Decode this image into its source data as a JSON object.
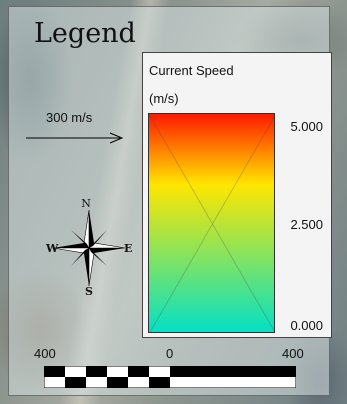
{
  "legend": {
    "title": "Legend",
    "speed_scale": {
      "title": "Current Speed",
      "unit": "(m/s)",
      "labels": [
        "5.000",
        "2.500",
        "0.000"
      ],
      "gradient_colors": [
        "#ff1a00",
        "#ffe600",
        "#00e0c8"
      ]
    },
    "reference_vector": {
      "label": "300 m/s",
      "icon": "right-arrow-icon"
    },
    "compass": {
      "icon": "compass-rose-icon",
      "north": "N",
      "south": "S",
      "east": "E",
      "west": "W"
    },
    "scale_bar": {
      "labels": [
        "400",
        "0",
        "400"
      ]
    }
  }
}
